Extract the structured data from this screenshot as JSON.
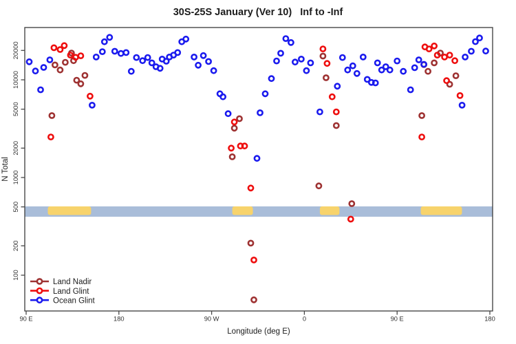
{
  "chart_data": {
    "type": "scatter",
    "title": "30S-25S January (Ver 10)   Inf to -Inf",
    "xlabel": "Longitude (deg E)",
    "ylabel": "N Total",
    "axis_color": "#474747",
    "x_axis": {
      "note_units": "deg E, increasing eastward and wrapping past the dateline",
      "range": [
        88.7,
        542.7
      ],
      "ticks": [
        {
          "value": 90,
          "label": "90 E"
        },
        {
          "value": 180,
          "label": "180"
        },
        {
          "value": 270,
          "label": "90 W"
        },
        {
          "value": 360,
          "label": "0"
        },
        {
          "value": 450,
          "label": "90 E"
        },
        {
          "value": 540,
          "label": "180"
        }
      ]
    },
    "y_axis": {
      "scale": "log",
      "range": [
        45,
        33000
      ],
      "ticks": [
        100,
        200,
        500,
        1000,
        2000,
        5000,
        10000,
        20000
      ]
    },
    "surface_band": {
      "y_position_value": 500,
      "ocean_color": "#a9bdd9",
      "land_color": "#f7d36c",
      "land_segments_deg": [
        [
          111,
          153
        ],
        [
          290,
          310
        ],
        [
          375,
          394
        ],
        [
          473,
          513
        ]
      ]
    },
    "legend_position": "bottom-left",
    "series": [
      {
        "name": "Land Nadir",
        "color": "#9e3232",
        "points": [
          [
            118,
            14200
          ],
          [
            123,
            12600
          ],
          [
            128,
            15100
          ],
          [
            134,
            18800
          ],
          [
            136,
            15700
          ],
          [
            139,
            9900
          ],
          [
            143,
            9100
          ],
          [
            147,
            11100
          ],
          [
            115,
            4300
          ],
          [
            290,
            1630
          ],
          [
            292,
            3200
          ],
          [
            297,
            4000
          ],
          [
            308,
            213
          ],
          [
            311,
            56
          ],
          [
            374,
            820
          ],
          [
            378,
            17500
          ],
          [
            381,
            10500
          ],
          [
            391,
            3400
          ],
          [
            406,
            540
          ],
          [
            474,
            4300
          ],
          [
            476,
            14300
          ],
          [
            480,
            12200
          ],
          [
            486,
            14900
          ],
          [
            492,
            18800
          ],
          [
            501,
            9000
          ],
          [
            507,
            11000
          ]
        ]
      },
      {
        "name": "Land Glint",
        "color": "#ee0e0e",
        "points": [
          [
            114,
            2600
          ],
          [
            117,
            21300
          ],
          [
            123,
            20400
          ],
          [
            127,
            22400
          ],
          [
            133,
            17900
          ],
          [
            138,
            17000
          ],
          [
            143,
            17600
          ],
          [
            152,
            6800
          ],
          [
            289,
            2000
          ],
          [
            292,
            3700
          ],
          [
            298,
            2100
          ],
          [
            302,
            2100
          ],
          [
            308,
            780
          ],
          [
            311,
            143
          ],
          [
            378,
            20700
          ],
          [
            382,
            14700
          ],
          [
            387,
            6700
          ],
          [
            391,
            4700
          ],
          [
            405,
            375
          ],
          [
            474,
            2600
          ],
          [
            477,
            21700
          ],
          [
            481,
            20700
          ],
          [
            486,
            22200
          ],
          [
            489,
            17900
          ],
          [
            496,
            17100
          ],
          [
            498,
            9800
          ],
          [
            501,
            17900
          ],
          [
            506,
            15700
          ],
          [
            511,
            6900
          ]
        ]
      },
      {
        "name": "Ocean Glint",
        "color": "#1a1aee",
        "points": [
          [
            93,
            15300
          ],
          [
            99,
            12300
          ],
          [
            104,
            7900
          ],
          [
            107,
            13400
          ],
          [
            113,
            16000
          ],
          [
            154,
            5500
          ],
          [
            158,
            17100
          ],
          [
            164,
            19400
          ],
          [
            166,
            24500
          ],
          [
            171,
            27200
          ],
          [
            176,
            19600
          ],
          [
            182,
            18600
          ],
          [
            187,
            19000
          ],
          [
            192,
            12200
          ],
          [
            197,
            16900
          ],
          [
            203,
            15700
          ],
          [
            208,
            16900
          ],
          [
            212,
            14900
          ],
          [
            216,
            13600
          ],
          [
            220,
            13100
          ],
          [
            222,
            16300
          ],
          [
            226,
            15500
          ],
          [
            229,
            17100
          ],
          [
            233,
            17900
          ],
          [
            237,
            19000
          ],
          [
            241,
            24500
          ],
          [
            245,
            26100
          ],
          [
            253,
            17100
          ],
          [
            257,
            14100
          ],
          [
            262,
            17700
          ],
          [
            267,
            15400
          ],
          [
            272,
            12400
          ],
          [
            278,
            7200
          ],
          [
            281,
            6700
          ],
          [
            286,
            4500
          ],
          [
            314,
            1570
          ],
          [
            317,
            4600
          ],
          [
            322,
            7200
          ],
          [
            328,
            10300
          ],
          [
            333,
            15600
          ],
          [
            337,
            18700
          ],
          [
            342,
            26400
          ],
          [
            347,
            24100
          ],
          [
            351,
            15200
          ],
          [
            357,
            16300
          ],
          [
            362,
            12400
          ],
          [
            366,
            14900
          ],
          [
            375,
            4700
          ],
          [
            392,
            8600
          ],
          [
            397,
            16900
          ],
          [
            402,
            12600
          ],
          [
            407,
            13900
          ],
          [
            411,
            11600
          ],
          [
            417,
            17100
          ],
          [
            421,
            10100
          ],
          [
            425,
            9400
          ],
          [
            429,
            9300
          ],
          [
            431,
            14900
          ],
          [
            435,
            12600
          ],
          [
            439,
            13600
          ],
          [
            443,
            12600
          ],
          [
            450,
            15600
          ],
          [
            456,
            12200
          ],
          [
            463,
            7900
          ],
          [
            467,
            13300
          ],
          [
            471,
            16000
          ],
          [
            476,
            14400
          ],
          [
            513,
            5500
          ],
          [
            516,
            17100
          ],
          [
            522,
            19600
          ],
          [
            526,
            24600
          ],
          [
            530,
            26800
          ],
          [
            536,
            19700
          ]
        ]
      }
    ]
  }
}
